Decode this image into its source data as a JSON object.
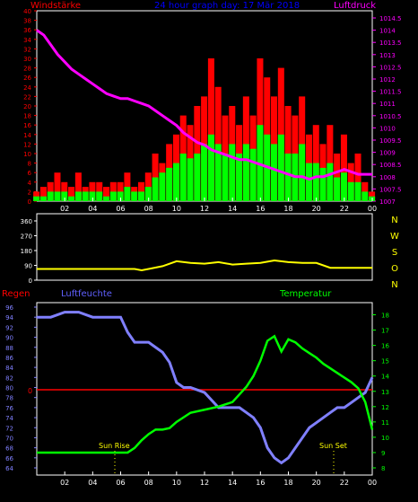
{
  "top_panel": {
    "left_label": "Windstärke",
    "center_label": "24 hour graph day: 17 Mär 2018",
    "right_label": "Luftdruck",
    "left_ticks": [
      "0",
      "2",
      "4",
      "6",
      "8",
      "10",
      "12",
      "14",
      "16",
      "18",
      "20",
      "22",
      "24",
      "26",
      "28",
      "30",
      "32",
      "34",
      "36",
      "38",
      "40"
    ],
    "right_ticks": [
      "1007",
      "1007.5",
      "1008",
      "1008.5",
      "1009",
      "1009.5",
      "1010",
      "1010.5",
      "1011",
      "1011.5",
      "1012",
      "1012.5",
      "1013",
      "1013.5",
      "1014",
      "1014.5"
    ]
  },
  "middle_panel": {
    "left_ticks": [
      "0",
      "90",
      "180",
      "270",
      "360"
    ],
    "right_labels": [
      "N",
      "W",
      "S",
      "O",
      "N"
    ]
  },
  "bottom_panel": {
    "left_label": "Regen",
    "humidity_label": "Luftfeuchte",
    "temp_label": "Temperatur",
    "rain_value": "0",
    "left_ticks": [
      "64",
      "66",
      "68",
      "70",
      "72",
      "74",
      "76",
      "78",
      "80",
      "82",
      "84",
      "86",
      "88",
      "90",
      "92",
      "94",
      "96"
    ],
    "right_ticks": [
      "8",
      "9",
      "10",
      "11",
      "12",
      "13",
      "14",
      "15",
      "16",
      "17",
      "18"
    ],
    "sunrise_label": "Sun Rise",
    "sunset_label": "Sun Set"
  },
  "x_ticks": [
    "02",
    "04",
    "06",
    "08",
    "10",
    "12",
    "14",
    "16",
    "18",
    "20",
    "22",
    "00"
  ],
  "colors": {
    "background": "#000000",
    "axis": "#ffffff",
    "wind_gust": "#ff0000",
    "wind_avg": "#00ff00",
    "pressure": "#ff00ff",
    "direction": "#ffff00",
    "humidity": "#8080ff",
    "temperature": "#00ff00",
    "rain": "#ff0000",
    "left_title": "#ff0000",
    "center_title": "#0000ff",
    "right_title": "#ff00ff",
    "humidity_title": "#6060ff",
    "temp_title": "#00ff00",
    "sun_label": "#ffff00"
  },
  "chart_data": [
    {
      "type": "bar",
      "name": "wind",
      "ylim": [
        0,
        40
      ],
      "y2lim": [
        1007,
        1014.5
      ],
      "x_hours": [
        0,
        0.5,
        1,
        1.5,
        2,
        2.5,
        3,
        3.5,
        4,
        4.5,
        5,
        5.5,
        6,
        6.5,
        7,
        7.5,
        8,
        8.5,
        9,
        9.5,
        10,
        10.5,
        11,
        11.5,
        12,
        12.5,
        13,
        13.5,
        14,
        14.5,
        15,
        15.5,
        16,
        16.5,
        17,
        17.5,
        18,
        18.5,
        19,
        19.5,
        20,
        20.5,
        21,
        21.5,
        22,
        22.5,
        23,
        23.5,
        24
      ],
      "gust": [
        2,
        3,
        4,
        6,
        4,
        3,
        6,
        3,
        4,
        4,
        3,
        4,
        4,
        6,
        3,
        4,
        6,
        10,
        8,
        12,
        14,
        18,
        16,
        20,
        22,
        30,
        24,
        18,
        20,
        16,
        22,
        18,
        30,
        26,
        22,
        28,
        20,
        18,
        22,
        14,
        16,
        12,
        16,
        10,
        14,
        8,
        10,
        4,
        2
      ],
      "average": [
        1,
        1,
        2,
        2,
        2,
        1,
        2,
        2,
        2,
        2,
        1,
        2,
        2,
        3,
        2,
        2,
        3,
        5,
        6,
        7,
        8,
        10,
        9,
        10,
        12,
        14,
        12,
        10,
        12,
        10,
        12,
        11,
        16,
        14,
        12,
        14,
        10,
        10,
        12,
        8,
        8,
        7,
        8,
        5,
        6,
        4,
        4,
        2,
        1
      ],
      "pressure": [
        1014.0,
        1013.8,
        1013.4,
        1013.0,
        1012.7,
        1012.4,
        1012.2,
        1012.0,
        1011.8,
        1011.6,
        1011.4,
        1011.3,
        1011.2,
        1011.2,
        1011.1,
        1011.0,
        1010.9,
        1010.7,
        1010.5,
        1010.3,
        1010.1,
        1009.8,
        1009.6,
        1009.4,
        1009.3,
        1009.1,
        1009.0,
        1008.9,
        1008.8,
        1008.7,
        1008.7,
        1008.6,
        1008.5,
        1008.4,
        1008.3,
        1008.2,
        1008.1,
        1008.0,
        1008.0,
        1007.9,
        1008.0,
        1008.0,
        1008.1,
        1008.2,
        1008.3,
        1008.2,
        1008.1,
        1008.1,
        1008.1
      ]
    },
    {
      "type": "line",
      "name": "wind direction",
      "ylim": [
        0,
        360
      ],
      "x_hours": [
        0,
        1,
        2,
        3,
        4,
        5,
        6,
        7,
        7.5,
        8,
        9,
        10,
        11,
        12,
        13,
        14,
        15,
        16,
        17,
        18,
        19,
        20,
        21,
        22,
        23,
        24
      ],
      "values": [
        68,
        68,
        68,
        68,
        68,
        68,
        68,
        68,
        60,
        68,
        85,
        115,
        105,
        100,
        110,
        95,
        100,
        105,
        120,
        110,
        105,
        105,
        75,
        75,
        75,
        75
      ]
    },
    {
      "type": "line",
      "name": "humidity",
      "ylim": [
        64,
        96
      ],
      "x_hours": [
        0,
        1,
        2,
        3,
        4,
        5,
        6,
        6.5,
        7,
        8,
        8.5,
        9,
        9.5,
        10,
        10.5,
        11,
        12,
        13,
        14,
        14.5,
        15,
        15.5,
        16,
        16.5,
        17,
        17.5,
        18,
        18.5,
        19,
        19.5,
        20,
        20.5,
        21,
        21.5,
        22,
        22.5,
        23,
        23.5,
        24
      ],
      "values": [
        94,
        94,
        95,
        95,
        94,
        94,
        94,
        91,
        89,
        89,
        88,
        87,
        85,
        81,
        80,
        80,
        79,
        76,
        76,
        76,
        75,
        74,
        72,
        68,
        66,
        65,
        66,
        68,
        70,
        72,
        73,
        74,
        75,
        76,
        76,
        77,
        78,
        79,
        82
      ]
    },
    {
      "type": "line",
      "name": "temperature",
      "ylim": [
        8,
        18.5
      ],
      "x_hours": [
        0,
        1,
        2,
        3,
        4,
        5,
        6,
        6.5,
        7,
        7.5,
        8,
        8.5,
        9,
        9.5,
        10,
        10.5,
        11,
        12,
        13,
        14,
        14.5,
        15,
        15.5,
        16,
        16.5,
        17,
        17.5,
        18,
        18.5,
        19,
        19.5,
        20,
        20.5,
        21,
        21.5,
        22,
        22.5,
        23,
        23.5,
        24
      ],
      "values": [
        9,
        9,
        9,
        9,
        9,
        9,
        9,
        9,
        9.3,
        9.8,
        10.2,
        10.5,
        10.5,
        10.6,
        11.0,
        11.3,
        11.6,
        11.8,
        12.0,
        12.3,
        12.8,
        13.3,
        14.0,
        15.0,
        16.3,
        16.6,
        15.6,
        16.4,
        16.2,
        15.8,
        15.5,
        15.2,
        14.8,
        14.5,
        14.2,
        13.9,
        13.6,
        13.2,
        12.3,
        10.5
      ]
    },
    {
      "type": "line",
      "name": "rain",
      "values": [
        0
      ]
    }
  ]
}
